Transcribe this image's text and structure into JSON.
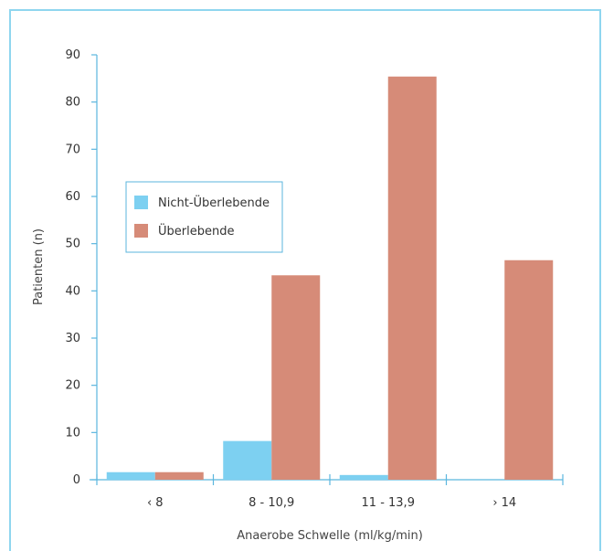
{
  "chart_data": {
    "type": "bar",
    "categories": [
      "‹ 8",
      "8 - 10,9",
      "11 - 13,9",
      "› 14"
    ],
    "series": [
      {
        "name": "Nicht-Überlebende",
        "values": [
          1.6,
          8.2,
          1.0,
          0
        ]
      },
      {
        "name": "Überlebende",
        "values": [
          1.6,
          43.3,
          85.4,
          46.5
        ]
      }
    ],
    "xlabel": "Anaerobe Schwelle (ml/kg/min)",
    "ylabel": "Patienten (n)",
    "ylim": [
      0,
      90
    ],
    "yticks": [
      0,
      10,
      20,
      30,
      40,
      50,
      60,
      70,
      80,
      90
    ],
    "grid": false,
    "legend_position": "left-middle"
  },
  "colors": {
    "nicht_ueberlebende": "#7dd0f1",
    "ueberlebende": "#d68b78",
    "axis": "#5bb6de",
    "frame": "#8fd6ef",
    "legend_border": "#5bb6de"
  }
}
